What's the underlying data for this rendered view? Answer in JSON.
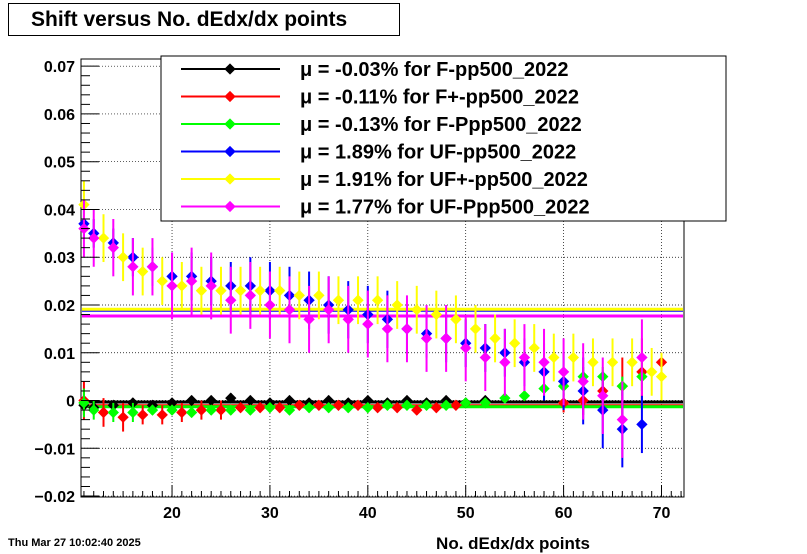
{
  "title": "Shift versus No. dEdx/dx points",
  "timestamp": "Thu Mar 27 10:02:40 2025",
  "chart_data": {
    "type": "scatter",
    "title": "Shift versus No. dEdx/dx points",
    "xlabel": "No. dEdx/dx points",
    "ylabel": "",
    "xlim": [
      10.7,
      72.3
    ],
    "ylim": [
      -0.0202,
      0.0715
    ],
    "xticks": [
      20,
      30,
      40,
      50,
      60,
      70
    ],
    "yticks": [
      -0.02,
      -0.01,
      0,
      0.01,
      0.02,
      0.03,
      0.04,
      0.05,
      0.06,
      0.07
    ],
    "ytick_labels": [
      "−0.02",
      "−0.01",
      "0",
      "0.01",
      "0.02",
      "0.03",
      "0.04",
      "0.05",
      "0.06",
      "0.07"
    ],
    "grid": true,
    "legend_position": "top-right",
    "series": [
      {
        "name": "μ = -0.03% for F-pp500_2022",
        "color": "#000000",
        "mean": -0.0003,
        "x": [
          11,
          12,
          14,
          16,
          18,
          20,
          22,
          24,
          26,
          28,
          30,
          32,
          34,
          36,
          38,
          40,
          42,
          44,
          46,
          48,
          50,
          52
        ],
        "y": [
          -0.001,
          -0.0015,
          -0.001,
          -0.0005,
          -0.001,
          -0.0005,
          0,
          0,
          0.0005,
          0,
          -0.0005,
          0,
          -0.0005,
          0,
          -0.0005,
          0,
          -0.0005,
          0,
          -0.0005,
          0,
          -0.0005,
          0
        ],
        "err": [
          0.002,
          0.001,
          0.001,
          0.001,
          0.001,
          0.001,
          0.001,
          0.001,
          0.001,
          0.001,
          0.001,
          0.001,
          0.001,
          0.001,
          0.001,
          0.001,
          0.001,
          0.001,
          0.001,
          0.001,
          0.001,
          0.001
        ]
      },
      {
        "name": "μ = -0.11% for F+-pp500_2022",
        "color": "#ff0000",
        "mean": -0.0011,
        "x": [
          11,
          13,
          15,
          17,
          19,
          21,
          23,
          25,
          27,
          29,
          31,
          33,
          35,
          37,
          39,
          41,
          43,
          45,
          47,
          49,
          60,
          62,
          64,
          66,
          68,
          70
        ],
        "y": [
          0,
          -0.0025,
          -0.0035,
          -0.003,
          -0.003,
          -0.0025,
          -0.002,
          -0.002,
          -0.0015,
          -0.0015,
          -0.0015,
          -0.001,
          -0.001,
          -0.001,
          -0.001,
          -0.0015,
          -0.0015,
          -0.002,
          -0.0015,
          -0.001,
          -0.0005,
          0,
          0.002,
          0.003,
          0.006,
          0.008
        ],
        "err": [
          0.004,
          0.003,
          0.003,
          0.002,
          0.002,
          0.002,
          0.002,
          0.002,
          0.001,
          0.001,
          0.001,
          0.001,
          0.001,
          0.001,
          0.001,
          0.001,
          0.001,
          0.001,
          0.001,
          0.001,
          0.002,
          0.003,
          0.004,
          0.006,
          0.007,
          0.002
        ]
      },
      {
        "name": "μ = -0.13% for F-Ppp500_2022",
        "color": "#00ff00",
        "mean": -0.0013,
        "x": [
          11,
          12,
          14,
          16,
          18,
          20,
          22,
          24,
          26,
          28,
          30,
          32,
          34,
          36,
          38,
          40,
          42,
          44,
          46,
          48,
          50,
          52,
          54,
          56,
          58,
          60,
          62,
          64,
          66,
          68
        ],
        "y": [
          -0.0005,
          -0.002,
          -0.0025,
          -0.0025,
          -0.002,
          -0.002,
          -0.0025,
          -0.002,
          -0.002,
          -0.002,
          -0.0015,
          -0.002,
          -0.0015,
          -0.0015,
          -0.0015,
          -0.0015,
          -0.001,
          -0.001,
          -0.001,
          -0.001,
          -0.0005,
          -0.0005,
          0.0005,
          0.001,
          0.0025,
          0.003,
          0.005,
          0.005,
          0.003,
          0.005
        ],
        "err": [
          0.003,
          0.002,
          0.002,
          0.002,
          0.001,
          0.001,
          0.001,
          0.001,
          0.001,
          0.001,
          0.001,
          0.001,
          0.001,
          0.001,
          0.001,
          0.001,
          0.001,
          0.001,
          0.001,
          0.001,
          0.001,
          0.001,
          0.001,
          0.001,
          0.002,
          0.002,
          0.002,
          0.002,
          0.002,
          0.003
        ]
      },
      {
        "name": "μ =  1.89% for UF-pp500_2022",
        "color": "#0000ff",
        "mean": 0.0189,
        "x": [
          11,
          12,
          14,
          16,
          18,
          20,
          22,
          24,
          26,
          28,
          30,
          32,
          34,
          36,
          38,
          40,
          42,
          44,
          46,
          48,
          50,
          52,
          54,
          56,
          58,
          60,
          62,
          64,
          66,
          68
        ],
        "y": [
          0.037,
          0.035,
          0.033,
          0.03,
          0.028,
          0.026,
          0.026,
          0.025,
          0.024,
          0.024,
          0.023,
          0.022,
          0.021,
          0.02,
          0.019,
          0.018,
          0.017,
          0.015,
          0.014,
          0.013,
          0.012,
          0.011,
          0.01,
          0.008,
          0.006,
          0.004,
          0.002,
          -0.002,
          -0.006,
          -0.005
        ],
        "err": [
          0.003,
          0.003,
          0.003,
          0.004,
          0.004,
          0.005,
          0.005,
          0.005,
          0.005,
          0.006,
          0.006,
          0.006,
          0.006,
          0.006,
          0.006,
          0.006,
          0.006,
          0.005,
          0.005,
          0.005,
          0.005,
          0.005,
          0.005,
          0.005,
          0.006,
          0.006,
          0.007,
          0.008,
          0.008,
          0.006
        ]
      },
      {
        "name": "μ =  1.91% for UF+-pp500_2022",
        "color": "#ffff00",
        "mean": 0.0191,
        "x": [
          11,
          13,
          15,
          17,
          19,
          21,
          23,
          25,
          27,
          29,
          31,
          33,
          35,
          37,
          39,
          41,
          43,
          45,
          47,
          49,
          51,
          53,
          55,
          57,
          59,
          61,
          63,
          65,
          67,
          69,
          70
        ],
        "y": [
          0.041,
          0.034,
          0.03,
          0.027,
          0.025,
          0.024,
          0.023,
          0.023,
          0.023,
          0.023,
          0.023,
          0.022,
          0.022,
          0.021,
          0.021,
          0.021,
          0.02,
          0.019,
          0.018,
          0.017,
          0.015,
          0.013,
          0.012,
          0.011,
          0.009,
          0.009,
          0.008,
          0.008,
          0.008,
          0.006,
          0.005
        ]
      },
      {
        "name": "μ =  1.77% for UF-Ppp500_2022",
        "color": "#ff00ff",
        "mean": 0.0177,
        "x": [
          11,
          12,
          14,
          16,
          18,
          20,
          22,
          24,
          26,
          28,
          30,
          32,
          34,
          36,
          38,
          40,
          42,
          44,
          46,
          48,
          50,
          52,
          54,
          56,
          58,
          60,
          62,
          64,
          66,
          68
        ],
        "y": [
          0.036,
          0.034,
          0.032,
          0.028,
          0.028,
          0.024,
          0.025,
          0.024,
          0.021,
          0.022,
          0.02,
          0.019,
          0.017,
          0.019,
          0.017,
          0.016,
          0.015,
          0.015,
          0.013,
          0.013,
          0.011,
          0.009,
          0.008,
          0.009,
          0.008,
          0.006,
          0.004,
          0.001,
          -0.004,
          0.009
        ],
        "err": [
          0.006,
          0.006,
          0.006,
          0.006,
          0.006,
          0.007,
          0.007,
          0.007,
          0.007,
          0.007,
          0.007,
          0.007,
          0.007,
          0.007,
          0.007,
          0.007,
          0.007,
          0.007,
          0.007,
          0.007,
          0.007,
          0.007,
          0.007,
          0.007,
          0.007,
          0.007,
          0.008,
          0.008,
          0.008,
          0.008
        ]
      }
    ]
  }
}
